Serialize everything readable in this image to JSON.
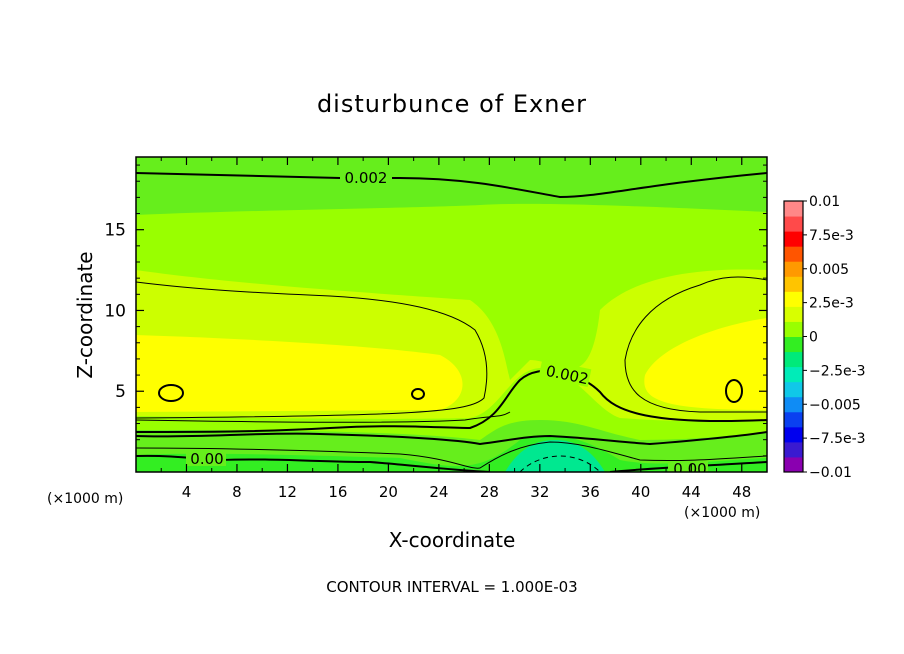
{
  "chart_data": {
    "type": "heatmap",
    "title": "disturbunce of Exner",
    "xlabel": "X-coordinate",
    "ylabel": "Z-coordinate",
    "x_unit_left": "(×1000 m)",
    "x_unit_right": "(×1000 m)",
    "footer": "CONTOUR INTERVAL = 1.000E-03",
    "xlim": [
      0,
      50
    ],
    "ylim": [
      0,
      19.5
    ],
    "xticks": [
      4,
      8,
      12,
      16,
      20,
      24,
      28,
      32,
      36,
      40,
      44,
      48
    ],
    "xtick_labels": [
      "4",
      "8",
      "12",
      "16",
      "20",
      "24",
      "28",
      "32",
      "36",
      "40",
      "44",
      "48"
    ],
    "yticks": [
      5,
      10,
      15
    ],
    "ytick_labels": [
      "5",
      "10",
      "15"
    ],
    "colorbar": {
      "min": -0.01,
      "max": 0.01,
      "labels": [
        {
          "value": 0.01,
          "text": "0.01"
        },
        {
          "value": 0.0075,
          "text": "7.5e-3"
        },
        {
          "value": 0.005,
          "text": "0.005"
        },
        {
          "value": 0.0025,
          "text": "2.5e-3"
        },
        {
          "value": 0,
          "text": "0"
        },
        {
          "value": -0.0025,
          "text": "−2.5e-3"
        },
        {
          "value": -0.005,
          "text": "−0.005"
        },
        {
          "value": -0.0075,
          "text": "−7.5e-3"
        },
        {
          "value": -0.01,
          "text": "−0.01"
        }
      ],
      "colors": [
        "#8a00b0",
        "#3a1ad0",
        "#0000ee",
        "#0a40f0",
        "#0f8cf5",
        "#10c8e8",
        "#00ecb8",
        "#00ea7a",
        "#33ee22",
        "#99ff00",
        "#d8ff00",
        "#ffff00",
        "#ffc400",
        "#ff9900",
        "#ff5500",
        "#ff0000",
        "#ff4a4a",
        "#ff8888"
      ]
    },
    "contour_labels": [
      "0.002",
      "0.002",
      "0.00",
      "0.00"
    ]
  }
}
